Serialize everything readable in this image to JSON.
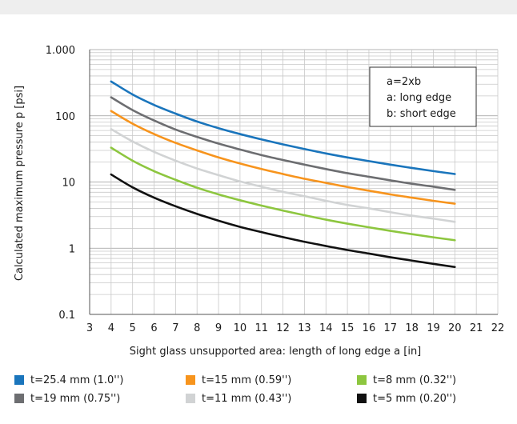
{
  "chart_data": {
    "type": "line",
    "xlabel": "Sight glass unsupported area: length of long edge a [in]",
    "ylabel": "Calculated maximum pressure p [psi]",
    "xlim": [
      3,
      22
    ],
    "ylim": [
      0.1,
      1000
    ],
    "yscale": "log",
    "grid": true,
    "x_ticks": [
      "3",
      "4",
      "5",
      "6",
      "7",
      "8",
      "9",
      "10",
      "11",
      "12",
      "13",
      "14",
      "15",
      "16",
      "17",
      "18",
      "19",
      "20",
      "21",
      "22"
    ],
    "y_ticks": [
      {
        "value": 0.1,
        "label": "0.1"
      },
      {
        "value": 1,
        "label": "1"
      },
      {
        "value": 10,
        "label": "10"
      },
      {
        "value": 100,
        "label": "100"
      },
      {
        "value": 1000,
        "label": "1.000"
      }
    ],
    "annotation": [
      "a=2xb",
      "a: long edge",
      "b: short edge"
    ],
    "legend_placement": "bottom",
    "x": [
      4,
      5,
      6,
      7,
      8,
      9,
      10,
      11,
      12,
      13,
      14,
      15,
      16,
      17,
      18,
      19,
      20
    ],
    "series": [
      {
        "name": "t=25.4 mm (1.0'')",
        "color": "#1a75bc",
        "values": [
          330,
          210,
          146,
          108,
          82,
          65,
          53,
          44,
          37,
          31.5,
          27,
          23.5,
          20.7,
          18.3,
          16.3,
          14.6,
          13.2
        ]
      },
      {
        "name": "t=19 mm (0.75'')",
        "color": "#6d6e71",
        "values": [
          190,
          122,
          85,
          62,
          48,
          38,
          31,
          25.5,
          21.5,
          18.3,
          15.7,
          13.6,
          12,
          10.6,
          9.4,
          8.5,
          7.6
        ]
      },
      {
        "name": "t=15 mm (0.59'')",
        "color": "#f7941d",
        "values": [
          118,
          76,
          53,
          39,
          30,
          23.5,
          19,
          15.7,
          13.2,
          11.2,
          9.7,
          8.4,
          7.4,
          6.5,
          5.8,
          5.2,
          4.7
        ]
      },
      {
        "name": "t=11 mm (0.43'')",
        "color": "#d1d3d4",
        "values": [
          63,
          41,
          28.5,
          21,
          16,
          12.7,
          10.2,
          8.5,
          7.1,
          6.1,
          5.2,
          4.5,
          4,
          3.5,
          3.1,
          2.8,
          2.5
        ]
      },
      {
        "name": "t=8 mm (0.32'')",
        "color": "#8dc63f",
        "values": [
          33,
          21,
          14.6,
          10.8,
          8.2,
          6.5,
          5.3,
          4.4,
          3.7,
          3.15,
          2.7,
          2.35,
          2.07,
          1.83,
          1.63,
          1.46,
          1.32
        ]
      },
      {
        "name": "t=5 mm (0.20'')",
        "color": "#111111",
        "values": [
          13,
          8.3,
          5.8,
          4.3,
          3.3,
          2.6,
          2.1,
          1.75,
          1.47,
          1.25,
          1.08,
          0.94,
          0.83,
          0.73,
          0.65,
          0.58,
          0.52
        ]
      }
    ]
  },
  "legend": [
    {
      "label": "t=25.4 mm (1.0'')",
      "color": "#1a75bc",
      "col": 0,
      "row": 0
    },
    {
      "label": "t=15 mm (0.59'')",
      "color": "#f7941d",
      "col": 1,
      "row": 0
    },
    {
      "label": "t=8 mm (0.32'')",
      "color": "#8dc63f",
      "col": 2,
      "row": 0
    },
    {
      "label": "t=19 mm (0.75'')",
      "color": "#6d6e71",
      "col": 0,
      "row": 1
    },
    {
      "label": "t=11 mm (0.43'')",
      "color": "#d1d3d4",
      "col": 1,
      "row": 1
    },
    {
      "label": "t=5 mm (0.20'')",
      "color": "#111111",
      "col": 2,
      "row": 1
    }
  ]
}
